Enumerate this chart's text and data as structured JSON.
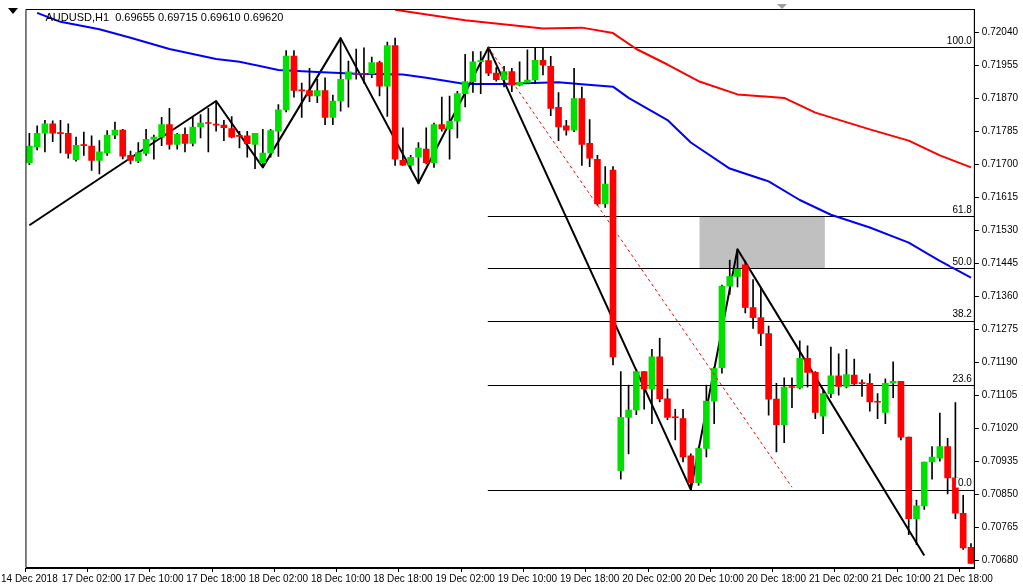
{
  "chart_data": {
    "type": "candlestick",
    "title": "AUDUSD,H1  0.69655 0.69715 0.69610 0.69620",
    "categories": [
      "14 Dec 2018",
      null,
      null,
      null,
      null,
      null,
      null,
      null,
      "17 Dec 02:00",
      null,
      null,
      null,
      null,
      null,
      null,
      null,
      "17 Dec 10:00",
      null,
      null,
      null,
      null,
      null,
      null,
      null,
      "17 Dec 18:00",
      null,
      null,
      null,
      null,
      null,
      null,
      null,
      "18 Dec 02:00",
      null,
      null,
      null,
      null,
      null,
      null,
      null,
      "18 Dec 10:00",
      null,
      null,
      null,
      null,
      null,
      null,
      null,
      "18 Dec 18:00",
      null,
      null,
      null,
      null,
      null,
      null,
      null,
      "19 Dec 02:00",
      null,
      null,
      null,
      null,
      null,
      null,
      null,
      "19 Dec 10:00",
      null,
      null,
      null,
      null,
      null,
      null,
      null,
      "19 Dec 18:00",
      null,
      null,
      null,
      null,
      null,
      null,
      null,
      "20 Dec 02:00",
      null,
      null,
      null,
      null,
      null,
      null,
      null,
      "20 Dec 10:00",
      null,
      null,
      null,
      null,
      null,
      null,
      null,
      "20 Dec 18:00",
      null,
      null,
      null,
      null,
      null,
      null,
      null,
      "21 Dec 02:00",
      null,
      null,
      null,
      null,
      null,
      null,
      null,
      "21 Dec 10:00",
      null,
      null,
      null,
      null,
      null,
      null,
      null,
      "21 Dec 18:00",
      null
    ],
    "ohlc": [
      [
        0.71704,
        0.7178,
        0.71699,
        0.71747
      ],
      [
        0.71745,
        0.71799,
        0.71737,
        0.7178
      ],
      [
        0.7178,
        0.71813,
        0.71732,
        0.71804
      ],
      [
        0.71804,
        0.71812,
        0.71758,
        0.7178
      ],
      [
        0.7178,
        0.71813,
        0.71729,
        0.71779
      ],
      [
        0.7178,
        0.71804,
        0.71716,
        0.71728
      ],
      [
        0.71712,
        0.7177,
        0.71708,
        0.71749
      ],
      [
        0.71749,
        0.71783,
        0.71723,
        0.71748
      ],
      [
        0.71747,
        0.71773,
        0.71684,
        0.7171
      ],
      [
        0.7171,
        0.71761,
        0.71675,
        0.71732
      ],
      [
        0.71729,
        0.71787,
        0.71723,
        0.71775
      ],
      [
        0.71775,
        0.71809,
        0.71766,
        0.71788
      ],
      [
        0.71788,
        0.7179,
        0.71714,
        0.71721
      ],
      [
        0.71723,
        0.71734,
        0.71701,
        0.7171
      ],
      [
        0.71708,
        0.71756,
        0.71704,
        0.7173
      ],
      [
        0.71728,
        0.7179,
        0.71723,
        0.71764
      ],
      [
        0.71764,
        0.71775,
        0.71713,
        0.7177
      ],
      [
        0.7177,
        0.71821,
        0.71748,
        0.71802
      ],
      [
        0.71802,
        0.71844,
        0.71739,
        0.71751
      ],
      [
        0.71751,
        0.7178,
        0.71739,
        0.71777
      ],
      [
        0.71777,
        0.71794,
        0.71732,
        0.71754
      ],
      [
        0.71754,
        0.71823,
        0.71747,
        0.71796
      ],
      [
        0.71796,
        0.71828,
        0.71768,
        0.71806
      ],
      [
        0.71806,
        0.71844,
        0.71732,
        0.71805
      ],
      [
        0.71802,
        0.71863,
        0.71785,
        0.71801
      ],
      [
        0.71801,
        0.71813,
        0.71761,
        0.71794
      ],
      [
        0.71792,
        0.71823,
        0.71768,
        0.7177
      ],
      [
        0.71773,
        0.71785,
        0.71742,
        0.71772
      ],
      [
        0.71773,
        0.71785,
        0.71718,
        0.71753
      ],
      [
        0.71751,
        0.7178,
        0.71689,
        0.7178
      ],
      [
        0.71704,
        0.7179,
        0.71692,
        0.71729
      ],
      [
        0.71729,
        0.7179,
        0.71718,
        0.71787
      ],
      [
        0.71785,
        0.71854,
        0.7172,
        0.7184
      ],
      [
        0.7184,
        0.71993,
        0.71835,
        0.71979
      ],
      [
        0.71979,
        0.71993,
        0.71873,
        0.7189
      ],
      [
        0.7189,
        0.71909,
        0.71821,
        0.71889
      ],
      [
        0.7189,
        0.71947,
        0.71861,
        0.71876
      ],
      [
        0.71876,
        0.71919,
        0.71859,
        0.7189
      ],
      [
        0.7189,
        0.71923,
        0.71802,
        0.71821
      ],
      [
        0.71821,
        0.71878,
        0.71802,
        0.71863
      ],
      [
        0.71863,
        0.72025,
        0.71837,
        0.71919
      ],
      [
        0.71919,
        0.71966,
        0.71847,
        0.71938
      ],
      [
        0.71933,
        0.71997,
        0.71919,
        0.71932
      ],
      [
        0.71933,
        0.72,
        0.71909,
        0.71932
      ],
      [
        0.71933,
        0.71976,
        0.71923,
        0.71962
      ],
      [
        0.71962,
        0.71966,
        0.71876,
        0.71901
      ],
      [
        0.71901,
        0.72015,
        0.71823,
        0.72006
      ],
      [
        0.72006,
        0.72025,
        0.71697,
        0.71713
      ],
      [
        0.7171,
        0.71794,
        0.71697,
        0.71698
      ],
      [
        0.71698,
        0.71723,
        0.71689,
        0.71718
      ],
      [
        0.71718,
        0.71756,
        0.71651,
        0.71742
      ],
      [
        0.71739,
        0.71794,
        0.71701,
        0.71704
      ],
      [
        0.71704,
        0.71806,
        0.71692,
        0.71802
      ],
      [
        0.71802,
        0.71873,
        0.71785,
        0.71791
      ],
      [
        0.71792,
        0.71876,
        0.71713,
        0.71811
      ],
      [
        0.71811,
        0.71888,
        0.71768,
        0.71882
      ],
      [
        0.71882,
        0.71983,
        0.71848,
        0.71913
      ],
      [
        0.71913,
        0.7199,
        0.71885,
        0.71964
      ],
      [
        0.71964,
        0.7199,
        0.71882,
        0.71967
      ],
      [
        0.71967,
        0.72001,
        0.71928,
        0.71935
      ],
      [
        0.71935,
        0.71949,
        0.71914,
        0.71918
      ],
      [
        0.71918,
        0.71952,
        0.71899,
        0.71939
      ],
      [
        0.71939,
        0.71947,
        0.71887,
        0.71904
      ],
      [
        0.71904,
        0.71964,
        0.71902,
        0.71911
      ],
      [
        0.71911,
        0.71995,
        0.71909,
        0.71917
      ],
      [
        0.71917,
        0.72,
        0.71909,
        0.71968
      ],
      [
        0.71968,
        0.72,
        0.7193,
        0.71955
      ],
      [
        0.71952,
        0.71978,
        0.71825,
        0.71844
      ],
      [
        0.71847,
        0.71885,
        0.71761,
        0.71796
      ],
      [
        0.71799,
        0.71813,
        0.71775,
        0.71788
      ],
      [
        0.71788,
        0.71947,
        0.71784,
        0.71869
      ],
      [
        0.71869,
        0.71899,
        0.71697,
        0.71751
      ],
      [
        0.71754,
        0.71815,
        0.71694,
        0.71716
      ],
      [
        0.71713,
        0.71723,
        0.71594,
        0.71598
      ],
      [
        0.71598,
        0.71694,
        0.71589,
        0.71649
      ],
      [
        0.71685,
        0.71694,
        0.71183,
        0.71204
      ],
      [
        0.70911,
        0.71166,
        0.70889,
        0.71048
      ],
      [
        0.71048,
        0.71131,
        0.70954,
        0.71067
      ],
      [
        0.71067,
        0.71172,
        0.71055,
        0.71166
      ],
      [
        0.71166,
        0.71166,
        0.71069,
        0.71121
      ],
      [
        0.71121,
        0.71223,
        0.71032,
        0.71204
      ],
      [
        0.71204,
        0.71252,
        0.71088,
        0.71096
      ],
      [
        0.71096,
        0.71121,
        0.71042,
        0.71048
      ],
      [
        0.71048,
        0.71069,
        0.7099,
        0.71047
      ],
      [
        0.71045,
        0.71069,
        0.70933,
        0.70946
      ],
      [
        0.70949,
        0.70954,
        0.70862,
        0.7088
      ],
      [
        0.7088,
        0.70971,
        0.70873,
        0.70968
      ],
      [
        0.70968,
        0.71131,
        0.70946,
        0.7109
      ],
      [
        0.7109,
        0.71176,
        0.71032,
        0.71174
      ],
      [
        0.71176,
        0.71389,
        0.71162,
        0.71386
      ],
      [
        0.71386,
        0.71453,
        0.71365,
        0.71411
      ],
      [
        0.71411,
        0.71481,
        0.71384,
        0.7143
      ],
      [
        0.71441,
        0.71451,
        0.71317,
        0.71331
      ],
      [
        0.71331,
        0.71403,
        0.71277,
        0.71305
      ],
      [
        0.71305,
        0.71379,
        0.71233,
        0.71264
      ],
      [
        0.71264,
        0.71283,
        0.71054,
        0.71095
      ],
      [
        0.71095,
        0.71136,
        0.70959,
        0.71029
      ],
      [
        0.71029,
        0.7115,
        0.70983,
        0.71126
      ],
      [
        0.71126,
        0.7115,
        0.71073,
        0.71125
      ],
      [
        0.71124,
        0.71245,
        0.71121,
        0.712
      ],
      [
        0.712,
        0.71232,
        0.71126,
        0.71164
      ],
      [
        0.71164,
        0.71166,
        0.71045,
        0.71061
      ],
      [
        0.71051,
        0.71117,
        0.71006,
        0.71109
      ],
      [
        0.71109,
        0.71229,
        0.71099,
        0.71155
      ],
      [
        0.71155,
        0.71212,
        0.71105,
        0.71128
      ],
      [
        0.71128,
        0.71223,
        0.71124,
        0.71158
      ],
      [
        0.71157,
        0.71198,
        0.71131,
        0.71134
      ],
      [
        0.71136,
        0.71145,
        0.71102,
        0.71135
      ],
      [
        0.71136,
        0.7116,
        0.71064,
        0.71088
      ],
      [
        0.71088,
        0.71109,
        0.71045,
        0.71087
      ],
      [
        0.71061,
        0.71147,
        0.71032,
        0.71136
      ],
      [
        0.71136,
        0.71191,
        0.71099,
        0.71141
      ],
      [
        0.71141,
        0.71141,
        0.7099,
        0.70997
      ],
      [
        0.70997,
        0.70997,
        0.70746,
        0.70787
      ],
      [
        0.70787,
        0.70835,
        0.7072,
        0.7082
      ],
      [
        0.7082,
        0.70933,
        0.70811,
        0.70933
      ],
      [
        0.70933,
        0.70973,
        0.70889,
        0.70946
      ],
      [
        0.70943,
        0.71059,
        0.70935,
        0.70973
      ],
      [
        0.70973,
        0.70994,
        0.70851,
        0.70892
      ],
      [
        0.70892,
        0.71086,
        0.70787,
        0.70801
      ],
      [
        0.70801,
        0.70847,
        0.70708,
        0.70712
      ],
      [
        0.70713,
        0.70723,
        0.70672,
        0.70672
      ]
    ],
    "colors": [
      "#00e000",
      "#00e000",
      "#00e000",
      "#ff0000",
      "#ff0000",
      "#ff0000",
      "#00e000",
      "#ff0000",
      "#ff0000",
      "#00e000",
      "#00e000",
      "#00e000",
      "#ff0000",
      "#ff0000",
      "#00e000",
      "#00e000",
      "#00e000",
      "#00e000",
      "#ff0000",
      "#00e000",
      "#ff0000",
      "#00e000",
      "#00e000",
      "#ff0000",
      "#ff0000",
      "#ff0000",
      "#ff0000",
      "#ff0000",
      "#ff0000",
      "#00e000",
      "#00e000",
      "#00e000",
      "#00e000",
      "#00e000",
      "#ff0000",
      "#ff0000",
      "#ff0000",
      "#00e000",
      "#ff0000",
      "#00e000",
      "#00e000",
      "#00e000",
      "#ff0000",
      "#ff0000",
      "#00e000",
      "#ff0000",
      "#00e000",
      "#ff0000",
      "#ff0000",
      "#00e000",
      "#00e000",
      "#ff0000",
      "#00e000",
      "#ff0000",
      "#00e000",
      "#00e000",
      "#00e000",
      "#00e000",
      "#00e000",
      "#ff0000",
      "#ff0000",
      "#00e000",
      "#ff0000",
      "#00e000",
      "#00e000",
      "#00e000",
      "#ff0000",
      "#ff0000",
      "#ff0000",
      "#ff0000",
      "#00e000",
      "#ff0000",
      "#ff0000",
      "#ff0000",
      "#00e000",
      "#ff0000",
      "#00e000",
      "#00e000",
      "#00e000",
      "#ff0000",
      "#00e000",
      "#ff0000",
      "#ff0000",
      "#ff0000",
      "#ff0000",
      "#ff0000",
      "#00e000",
      "#00e000",
      "#00e000",
      "#00e000",
      "#00e000",
      "#00e000",
      "#ff0000",
      "#ff0000",
      "#ff0000",
      "#ff0000",
      "#ff0000",
      "#00e000",
      "#ff0000",
      "#00e000",
      "#ff0000",
      "#ff0000",
      "#00e000",
      "#00e000",
      "#ff0000",
      "#00e000",
      "#ff0000",
      "#ff0000",
      "#ff0000",
      "#ff0000",
      "#00e000",
      "#00e000",
      "#ff0000",
      "#ff0000",
      "#00e000",
      "#00e000",
      "#00e000",
      "#00e000",
      "#ff0000",
      "#ff0000",
      "#ff0000",
      "#ff0000"
    ],
    "series": [
      {
        "type": "line",
        "color": "#ff0000",
        "values": [
          null,
          null,
          null,
          null,
          null,
          null,
          null,
          null,
          null,
          null,
          null,
          null,
          null,
          null,
          null,
          null,
          null,
          null,
          null,
          null,
          null,
          null,
          null,
          null,
          null,
          null,
          null,
          null,
          null,
          null,
          null,
          null,
          null,
          null,
          null,
          null,
          null,
          null,
          null,
          null,
          null,
          null,
          null,
          null,
          null,
          null,
          null,
          0.72098,
          null,
          null,
          null,
          null,
          null,
          null,
          null,
          null,
          0.72071,
          null,
          null,
          null,
          null,
          null,
          null,
          null,
          null,
          null,
          0.7205,
          null,
          null,
          null,
          null,
          0.72052,
          null,
          null,
          null,
          0.72038,
          null,
          null,
          0.71997,
          null,
          null,
          null,
          0.71957,
          null,
          null,
          null,
          0.71914,
          null,
          null,
          null,
          null,
          0.7188,
          null,
          null,
          null,
          null,
          null,
          0.71871,
          null,
          null,
          null,
          0.71833,
          null,
          null,
          null,
          null,
          null,
          null,
          0.7179,
          null,
          null,
          null,
          null,
          0.71761,
          null,
          null,
          null,
          0.71723,
          null,
          null,
          null,
          0.71692
        ]
      },
      {
        "type": "line",
        "color": "#0000ff",
        "values": [
          null,
          0.7209,
          null,
          null,
          0.72067,
          null,
          null,
          null,
          null,
          0.72048,
          null,
          null,
          null,
          0.72026,
          null,
          null,
          null,
          null,
          0.71997,
          null,
          null,
          null,
          null,
          null,
          0.71971,
          null,
          null,
          0.71964,
          null,
          null,
          null,
          null,
          0.71943,
          null,
          null,
          null,
          null,
          0.71938,
          null,
          null,
          null,
          null,
          0.71933,
          null,
          null,
          null,
          null,
          null,
          0.71931,
          null,
          null,
          0.71923,
          null,
          null,
          null,
          null,
          0.71907,
          null,
          null,
          null,
          null,
          0.71907,
          null,
          null,
          null,
          null,
          null,
          null,
          0.71911,
          null,
          null,
          0.71906,
          null,
          null,
          null,
          0.719,
          null,
          0.71871,
          null,
          null,
          null,
          null,
          0.71814,
          null,
          null,
          0.71756,
          null,
          null,
          null,
          null,
          0.71689,
          null,
          null,
          null,
          null,
          0.71656,
          null,
          null,
          null,
          0.71608,
          null,
          null,
          null,
          0.7157,
          null,
          null,
          null,
          null,
          0.71537,
          null,
          null,
          null,
          null,
          0.71498,
          null,
          null,
          null,
          0.71451,
          null,
          null,
          null,
          0.71408
        ]
      },
      {
        "type": "line",
        "color": "#000000",
        "values": [
          0.71543,
          null,
          null,
          null,
          null,
          null,
          null,
          null,
          null,
          null,
          null,
          null,
          null,
          null,
          null,
          null,
          null,
          null,
          null,
          null,
          null,
          null,
          null,
          null,
          0.71863,
          null,
          null,
          null,
          null,
          null,
          0.71692,
          null,
          null,
          null,
          null,
          null,
          null,
          null,
          null,
          null,
          0.72025,
          null,
          null,
          null,
          null,
          null,
          null,
          null,
          null,
          null,
          0.71651,
          null,
          null,
          null,
          null,
          null,
          null,
          null,
          null,
          0.72001,
          null,
          null,
          null,
          null,
          null,
          null,
          null,
          null,
          null,
          null,
          null,
          null,
          null,
          null,
          null,
          null,
          null,
          null,
          null,
          null,
          null,
          null,
          null,
          null,
          null,
          0.70862,
          null,
          null,
          null,
          null,
          null,
          0.71481,
          null,
          null,
          null,
          null,
          null,
          null,
          null,
          null,
          null,
          null,
          null,
          null,
          null,
          null,
          null,
          null,
          null,
          null,
          null,
          null,
          null,
          null,
          null,
          0.70692,
          null,
          null,
          null,
          null,
          null,
          null
        ]
      },
      {
        "type": "line",
        "color": "#ff0000",
        "line_style": "dashed",
        "values": [
          null,
          null,
          null,
          null,
          null,
          null,
          null,
          null,
          null,
          null,
          null,
          null,
          null,
          null,
          null,
          null,
          null,
          null,
          null,
          null,
          null,
          null,
          null,
          null,
          null,
          null,
          null,
          null,
          null,
          null,
          null,
          null,
          null,
          null,
          null,
          null,
          null,
          null,
          null,
          null,
          null,
          null,
          null,
          null,
          null,
          null,
          null,
          null,
          null,
          null,
          null,
          null,
          null,
          null,
          null,
          null,
          null,
          null,
          null,
          0.72001,
          null,
          null,
          null,
          null,
          null,
          null,
          null,
          null,
          null,
          null,
          null,
          null,
          null,
          null,
          null,
          null,
          null,
          null,
          null,
          null,
          null,
          null,
          null,
          null,
          null,
          null,
          null,
          null,
          null,
          null,
          null,
          null,
          null,
          null,
          null,
          null,
          null,
          null,
          0.70868,
          null,
          null,
          null,
          null,
          null,
          null,
          null,
          null,
          null,
          null,
          null,
          null,
          null,
          null,
          null,
          null,
          null,
          null,
          null,
          null,
          null,
          null,
          null
        ]
      }
    ],
    "ylim": [
      0.7066,
      0.721
    ],
    "yticks": [
      {
        "value": 0.7068,
        "label": "0.70680"
      },
      {
        "value": 0.70765,
        "label": "0.70765"
      },
      {
        "value": 0.7085,
        "label": "0.70850"
      },
      {
        "value": 0.70935,
        "label": "0.70935"
      },
      {
        "value": 0.7102,
        "label": "0.71020"
      },
      {
        "value": 0.71105,
        "label": "0.71105"
      },
      {
        "value": 0.7119,
        "label": "0.71190"
      },
      {
        "value": 0.71275,
        "label": "0.71275"
      },
      {
        "value": 0.7136,
        "label": "0.71360"
      },
      {
        "value": 0.71445,
        "label": "0.71445"
      },
      {
        "value": 0.7153,
        "label": "0.71530"
      },
      {
        "value": 0.71615,
        "label": "0.71615"
      },
      {
        "value": 0.717,
        "label": "0.71700"
      },
      {
        "value": 0.71785,
        "label": "0.71785"
      },
      {
        "value": 0.7187,
        "label": "0.71870"
      },
      {
        "value": 0.71955,
        "label": "0.71955"
      },
      {
        "value": 0.7204,
        "label": "0.72040"
      }
    ],
    "ref_lines": [
      {
        "axis": "y",
        "value": 0.72001,
        "color": "#000000"
      },
      {
        "axis": "y",
        "value": 0.71566,
        "color": "#000000"
      },
      {
        "axis": "y",
        "value": 0.71432,
        "color": "#000000"
      },
      {
        "axis": "y",
        "value": 0.71297,
        "color": "#000000"
      },
      {
        "axis": "y",
        "value": 0.71131,
        "color": "#000000"
      },
      {
        "axis": "y",
        "value": 0.70862,
        "color": "#000000"
      }
    ],
    "annotations": [
      {
        "text": "100.0",
        "y": 0.72001
      },
      {
        "text": "61.8",
        "y": 0.71566
      },
      {
        "text": "50.0",
        "y": 0.71432
      },
      {
        "text": "38.2",
        "y": 0.71297
      },
      {
        "text": "23.6",
        "y": 0.71131
      },
      {
        "text": "0.0",
        "y": 0.70862
      }
    ],
    "bands": [
      {
        "axis": "y",
        "from": 0.71432,
        "to": 0.71566,
        "color": "#c0c0c0"
      }
    ]
  }
}
